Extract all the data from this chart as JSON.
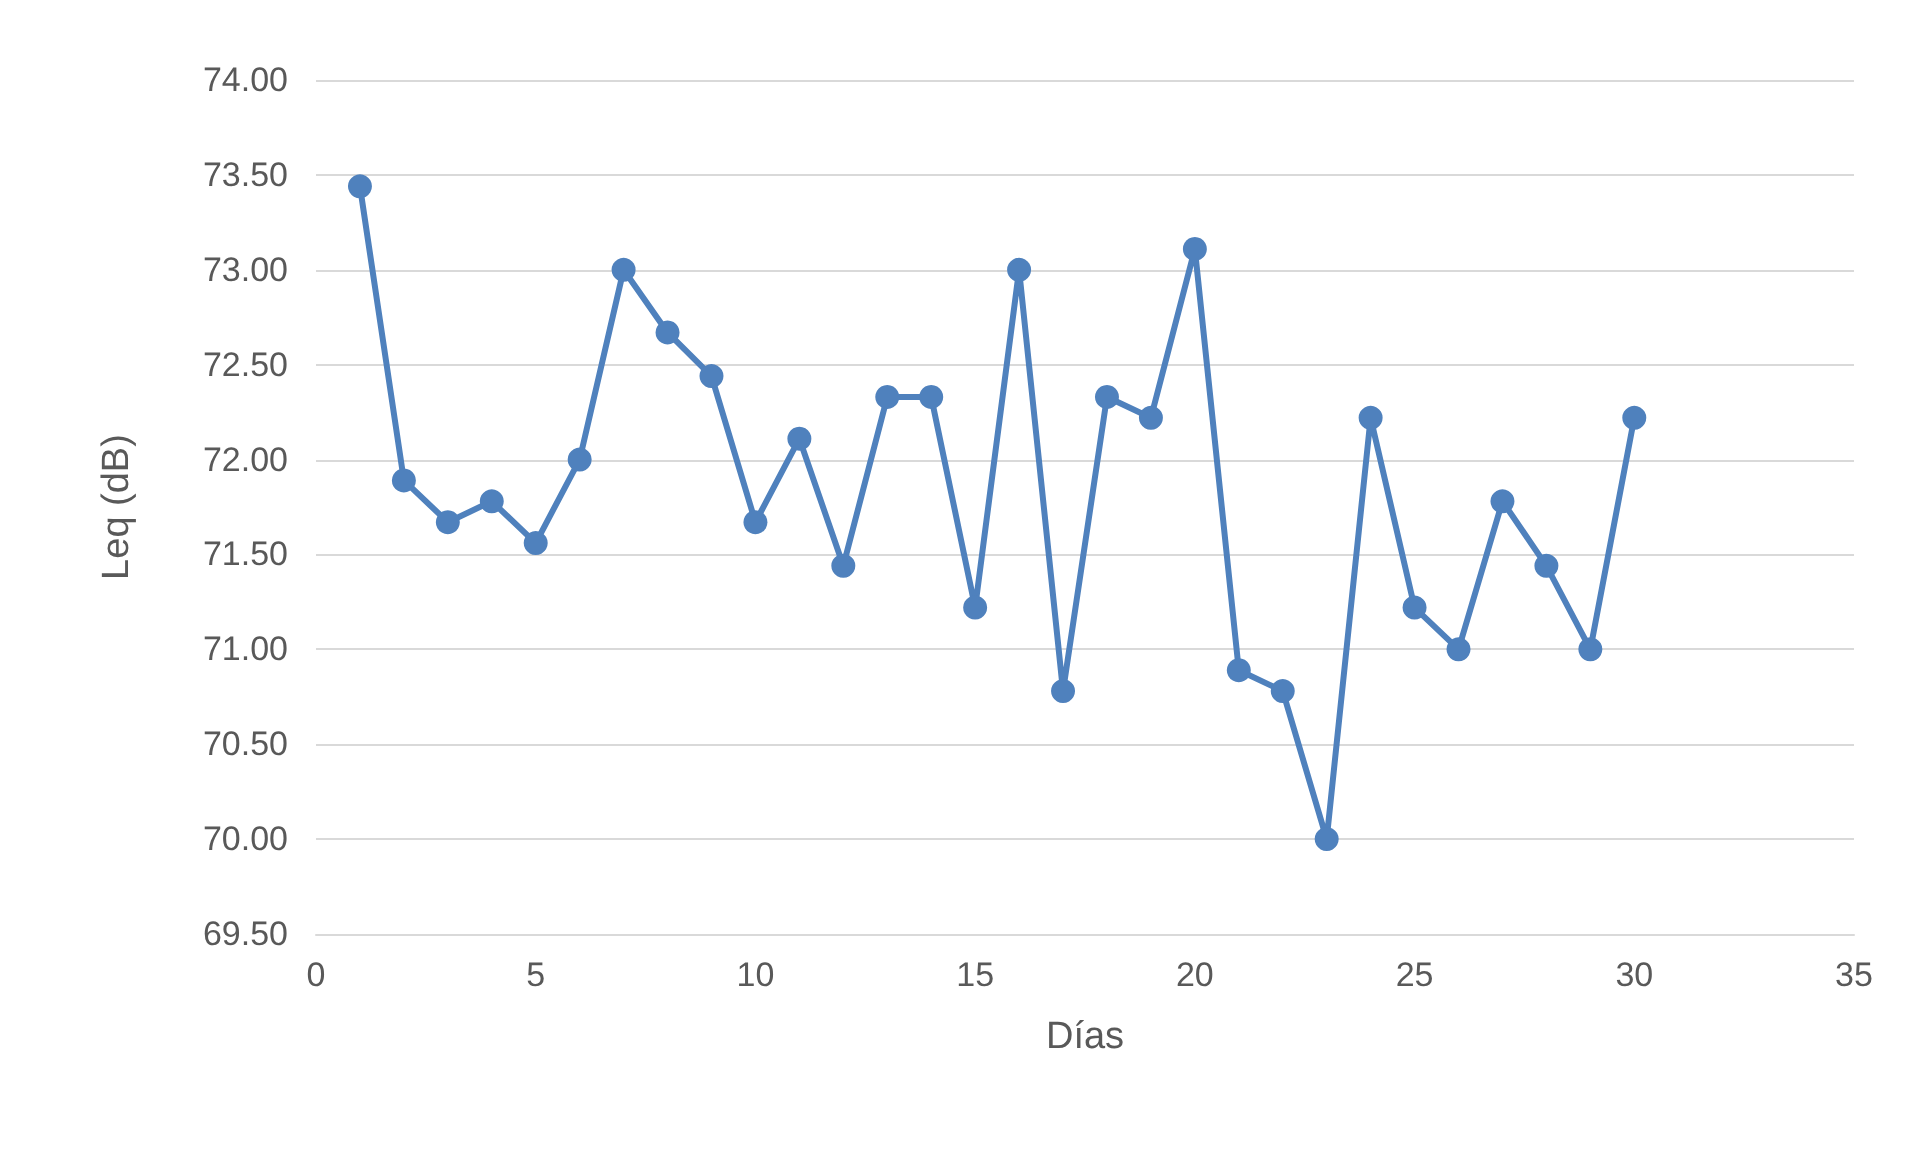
{
  "chart_data": {
    "type": "line",
    "xlabel": "Días",
    "ylabel": "Leq (dB)",
    "x": [
      1,
      2,
      3,
      4,
      5,
      6,
      7,
      8,
      9,
      10,
      11,
      12,
      13,
      14,
      15,
      16,
      17,
      18,
      19,
      20,
      21,
      22,
      23,
      24,
      25,
      26,
      27,
      28,
      29,
      30
    ],
    "series": [
      {
        "color": "#4f81bd",
        "values": [
          73.44,
          71.89,
          71.67,
          71.78,
          71.56,
          72.0,
          73.0,
          72.67,
          72.44,
          71.67,
          72.11,
          71.44,
          72.33,
          72.33,
          71.22,
          73.0,
          70.78,
          72.33,
          72.22,
          73.11,
          70.89,
          70.78,
          70.0,
          72.22,
          71.22,
          71.0,
          71.78,
          71.44,
          71.0,
          72.22
        ]
      }
    ],
    "xlim": [
      0,
      35
    ],
    "xticks": [
      0,
      5,
      10,
      15,
      20,
      25,
      30,
      35
    ],
    "ylim": [
      69.5,
      74
    ],
    "yticks": [
      {
        "value": 69.5,
        "label": "69.50"
      },
      {
        "value": 70,
        "label": "70.00"
      },
      {
        "value": 70.5,
        "label": "70.50"
      },
      {
        "value": 71,
        "label": "71.00"
      },
      {
        "value": 71.5,
        "label": "71.50"
      },
      {
        "value": 72,
        "label": "72.00"
      },
      {
        "value": 72.5,
        "label": "72.50"
      },
      {
        "value": 73,
        "label": "73.00"
      },
      {
        "value": 73.5,
        "label": "73.50"
      },
      {
        "value": 74,
        "label": "74.00"
      }
    ],
    "grid": "y",
    "marker": "circle",
    "line_style": "solid"
  }
}
